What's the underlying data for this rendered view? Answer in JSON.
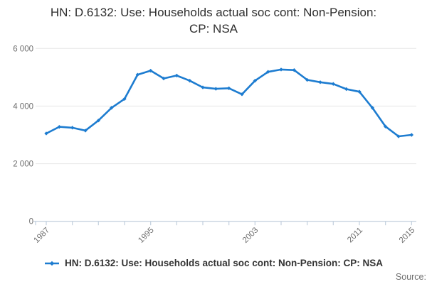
{
  "title": {
    "line1": "HN: D.6132: Use: Households actual soc cont: Non-Pension:",
    "line2": "CP: NSA"
  },
  "legend": {
    "series_label": "HN: D.6132: Use: Households actual soc cont: Non-Pension: CP: NSA"
  },
  "footer": {
    "source_label": "Source:"
  },
  "colors": {
    "line": "#1d7cd0",
    "grid": "#e6e6e6",
    "axis": "#c7d3e0",
    "title_text": "#2e2e2e",
    "tick_text": "#6e6e6e",
    "legend_text": "#333333"
  },
  "chart_data": {
    "type": "line",
    "title": "HN: D.6132: Use: Households actual soc cont: Non-Pension: CP: NSA",
    "x": [
      1987,
      1988,
      1989,
      1990,
      1991,
      1992,
      1993,
      1994,
      1995,
      1996,
      1997,
      1998,
      1999,
      2000,
      2001,
      2002,
      2003,
      2004,
      2005,
      2006,
      2007,
      2008,
      2009,
      2010,
      2011,
      2012,
      2013,
      2014,
      2015
    ],
    "series": [
      {
        "name": "HN: D.6132: Use: Households actual soc cont: Non-Pension: CP: NSA",
        "values": [
          3050,
          3280,
          3250,
          3150,
          3500,
          3940,
          4250,
          5090,
          5230,
          4960,
          5060,
          4880,
          4650,
          4600,
          4620,
          4410,
          4880,
          5190,
          5270,
          5250,
          4910,
          4830,
          4770,
          4590,
          4500,
          3940,
          3290,
          2950,
          3000
        ]
      }
    ],
    "xlabel": "",
    "ylabel": "",
    "ylim": [
      0,
      6000
    ],
    "yticks": [
      0,
      2000,
      4000,
      6000
    ],
    "ytick_labels": [
      "0",
      "2 000",
      "4 000",
      "6 000"
    ],
    "xtick_years": [
      1987,
      1989,
      1991,
      1993,
      1995,
      1997,
      1999,
      2001,
      2003,
      2005,
      2007,
      2009,
      2011,
      2013,
      2015
    ],
    "xtick_labeled_years": [
      1987,
      1995,
      2003,
      2011,
      2015
    ],
    "xtick_labels": [
      "1987",
      "1995",
      "2003",
      "2011",
      "2015"
    ],
    "grid": "horizontal-only",
    "legend_position": "bottom",
    "marker": "diamond"
  }
}
